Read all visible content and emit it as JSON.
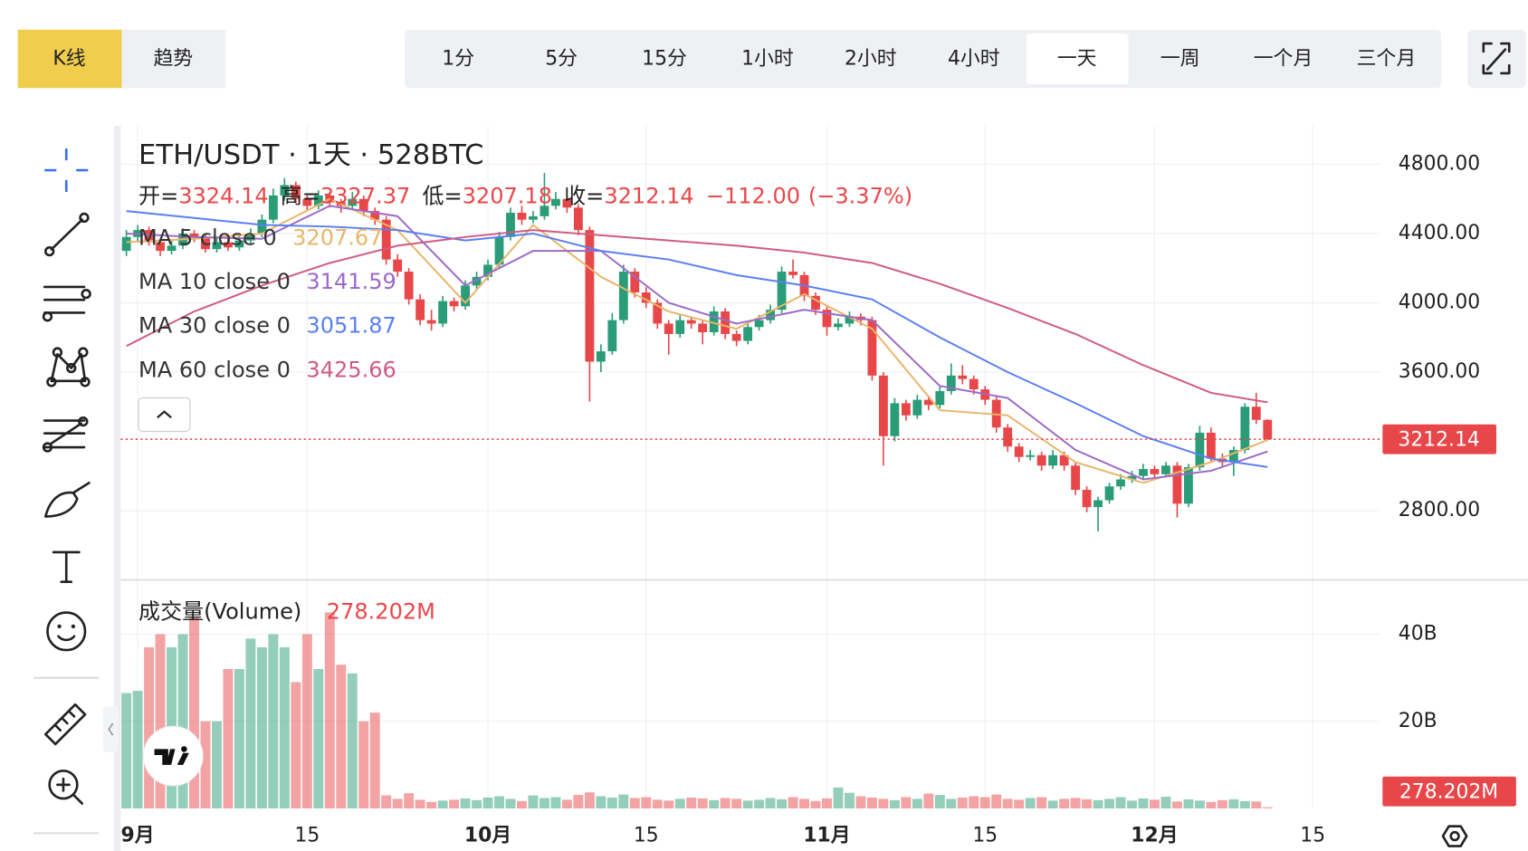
{
  "toolbar": {
    "chart_tabs": [
      "K线",
      "趋势"
    ],
    "selected_tab": 0,
    "intervals": [
      "1分",
      "5分",
      "15分",
      "1小时",
      "2小时",
      "4小时",
      "一天",
      "一周",
      "一个月",
      "三个月"
    ],
    "selected_interval": 6
  },
  "chart_data": {
    "type": "candlestick",
    "title": "ETH/USDT · 1天 · 528BTC",
    "ohlc_labels": [
      "开=",
      "高=",
      "低=",
      "收="
    ],
    "change": {
      "value": -112.0,
      "label": "−112.00"
    },
    "change_percent": {
      "value": -3.37,
      "label": "(−3.37%)"
    },
    "up_color": "#2a9d78",
    "down_color": "#e8474a",
    "grid": true,
    "xlim": [
      -0.5,
      111
    ],
    "xticks": [
      {
        "value": 1,
        "label": "9月"
      },
      {
        "value": 16,
        "label": "15"
      },
      {
        "value": 32,
        "label": "10月"
      },
      {
        "value": 46,
        "label": "15"
      },
      {
        "value": 62,
        "label": "11月"
      },
      {
        "value": 76,
        "label": "15"
      },
      {
        "value": 91,
        "label": "12月"
      },
      {
        "value": 105,
        "label": "15"
      }
    ],
    "ylim": [
      2400,
      5023
    ],
    "yticks": [
      {
        "value": 2800,
        "label": "2800.00"
      },
      {
        "value": 3600,
        "label": "3600.00"
      },
      {
        "value": 4000,
        "label": "4000.00"
      },
      {
        "value": 4400,
        "label": "4400.00"
      },
      {
        "value": 4800,
        "label": "4800.00"
      }
    ],
    "candles": [
      [
        4300,
        4420,
        4270,
        4380
      ],
      [
        4380,
        4450,
        4350,
        4420
      ],
      [
        4420,
        4440,
        4330,
        4350
      ],
      [
        4350,
        4370,
        4270,
        4300
      ],
      [
        4300,
        4360,
        4280,
        4330
      ],
      [
        4330,
        4430,
        4310,
        4400
      ],
      [
        4400,
        4420,
        4350,
        4380
      ],
      [
        4380,
        4400,
        4290,
        4310
      ],
      [
        4310,
        4380,
        4290,
        4350
      ],
      [
        4350,
        4370,
        4300,
        4320
      ],
      [
        4320,
        4390,
        4300,
        4360
      ],
      [
        4360,
        4430,
        4340,
        4400
      ],
      [
        4400,
        4510,
        4380,
        4480
      ],
      [
        4480,
        4660,
        4460,
        4620
      ],
      [
        4620,
        4720,
        4590,
        4680
      ],
      [
        4680,
        4700,
        4570,
        4600
      ],
      [
        4600,
        4620,
        4530,
        4560
      ],
      [
        4560,
        4650,
        4540,
        4620
      ],
      [
        4620,
        4640,
        4550,
        4580
      ],
      [
        4580,
        4600,
        4520,
        4560
      ],
      [
        4560,
        4640,
        4540,
        4600
      ],
      [
        4600,
        4620,
        4500,
        4530
      ],
      [
        4530,
        4550,
        4450,
        4480
      ],
      [
        4480,
        4500,
        4220,
        4250
      ],
      [
        4250,
        4280,
        4150,
        4180
      ],
      [
        4180,
        4200,
        3990,
        4020
      ],
      [
        4020,
        4050,
        3870,
        3900
      ],
      [
        3900,
        3960,
        3840,
        3880
      ],
      [
        3880,
        4040,
        3860,
        4010
      ],
      [
        4010,
        4030,
        3950,
        3980
      ],
      [
        3980,
        4130,
        3960,
        4100
      ],
      [
        4100,
        4180,
        4080,
        4150
      ],
      [
        4150,
        4250,
        4130,
        4220
      ],
      [
        4220,
        4410,
        4200,
        4380
      ],
      [
        4380,
        4550,
        4360,
        4520
      ],
      [
        4520,
        4560,
        4450,
        4480
      ],
      [
        4480,
        4530,
        4460,
        4500
      ],
      [
        4500,
        4750,
        4480,
        4560
      ],
      [
        4560,
        4640,
        4540,
        4600
      ],
      [
        4600,
        4620,
        4520,
        4550
      ],
      [
        4550,
        4570,
        4390,
        4420
      ],
      [
        4420,
        4440,
        3430,
        3660
      ],
      [
        3660,
        3760,
        3600,
        3720
      ],
      [
        3720,
        3940,
        3700,
        3900
      ],
      [
        3900,
        4220,
        3880,
        4180
      ],
      [
        4180,
        4200,
        4030,
        4060
      ],
      [
        4060,
        4090,
        3970,
        4000
      ],
      [
        4000,
        4020,
        3850,
        3880
      ],
      [
        3880,
        3900,
        3700,
        3820
      ],
      [
        3820,
        3930,
        3800,
        3900
      ],
      [
        3900,
        3920,
        3850,
        3880
      ],
      [
        3880,
        3900,
        3760,
        3830
      ],
      [
        3830,
        3980,
        3810,
        3950
      ],
      [
        3950,
        3970,
        3790,
        3820
      ],
      [
        3820,
        3840,
        3750,
        3780
      ],
      [
        3780,
        3890,
        3760,
        3860
      ],
      [
        3860,
        3930,
        3840,
        3900
      ],
      [
        3900,
        3990,
        3880,
        3960
      ],
      [
        3960,
        4210,
        3940,
        4180
      ],
      [
        4180,
        4250,
        4140,
        4160
      ],
      [
        4160,
        4180,
        4010,
        4040
      ],
      [
        4040,
        4060,
        3930,
        3960
      ],
      [
        3960,
        3980,
        3810,
        3860
      ],
      [
        3860,
        3910,
        3840,
        3880
      ],
      [
        3880,
        3950,
        3860,
        3920
      ],
      [
        3920,
        3940,
        3870,
        3900
      ],
      [
        3900,
        3920,
        3550,
        3580
      ],
      [
        3580,
        3600,
        3060,
        3230
      ],
      [
        3230,
        3450,
        3200,
        3420
      ],
      [
        3420,
        3440,
        3320,
        3350
      ],
      [
        3350,
        3470,
        3330,
        3440
      ],
      [
        3440,
        3460,
        3380,
        3410
      ],
      [
        3410,
        3520,
        3390,
        3490
      ],
      [
        3490,
        3650,
        3470,
        3580
      ],
      [
        3580,
        3640,
        3530,
        3560
      ],
      [
        3560,
        3580,
        3470,
        3500
      ],
      [
        3500,
        3520,
        3410,
        3440
      ],
      [
        3440,
        3460,
        3250,
        3280
      ],
      [
        3280,
        3300,
        3140,
        3170
      ],
      [
        3170,
        3190,
        3080,
        3110
      ],
      [
        3110,
        3150,
        3090,
        3120
      ],
      [
        3120,
        3140,
        3030,
        3060
      ],
      [
        3060,
        3150,
        3040,
        3120
      ],
      [
        3120,
        3140,
        3030,
        3060
      ],
      [
        3060,
        3080,
        2890,
        2920
      ],
      [
        2920,
        2940,
        2790,
        2820
      ],
      [
        2820,
        2880,
        2680,
        2860
      ],
      [
        2860,
        2960,
        2840,
        2940
      ],
      [
        2940,
        3010,
        2920,
        2980
      ],
      [
        2980,
        3030,
        2960,
        3000
      ],
      [
        3000,
        3070,
        2980,
        3040
      ],
      [
        3040,
        3060,
        2990,
        3010
      ],
      [
        3010,
        3080,
        2990,
        3060
      ],
      [
        3060,
        3080,
        2760,
        2840
      ],
      [
        2840,
        3070,
        2820,
        3050
      ],
      [
        3050,
        3290,
        3030,
        3250
      ],
      [
        3250,
        3280,
        3080,
        3100
      ],
      [
        3100,
        3130,
        3050,
        3080
      ],
      [
        3080,
        3170,
        3000,
        3150
      ],
      [
        3150,
        3420,
        3130,
        3400
      ],
      [
        3400,
        3480,
        3300,
        3324.14
      ],
      [
        3324.14,
        3327.37,
        3207.18,
        3212.14
      ]
    ],
    "ma": [
      {
        "name": "MA 5 close 0",
        "color": "#e8b56a",
        "x": [
          0,
          6,
          12,
          18,
          24,
          30,
          36,
          42,
          48,
          54,
          60,
          66,
          72,
          78,
          84,
          90,
          96,
          101
        ],
        "values": [
          4350,
          4370,
          4400,
          4600,
          4420,
          4000,
          4450,
          4150,
          3950,
          3850,
          4050,
          3850,
          3380,
          3350,
          3080,
          2960,
          3080,
          3207.67
        ]
      },
      {
        "name": "MA 10 close 0",
        "color": "#9c6ac7",
        "x": [
          0,
          6,
          12,
          18,
          24,
          30,
          36,
          42,
          48,
          54,
          60,
          66,
          72,
          78,
          84,
          90,
          96,
          101
        ],
        "values": [
          4400,
          4380,
          4370,
          4560,
          4500,
          4100,
          4300,
          4300,
          4000,
          3880,
          3960,
          3900,
          3520,
          3450,
          3150,
          2980,
          3030,
          3141.59
        ]
      },
      {
        "name": "MA 30 close 0",
        "color": "#5b7ef5",
        "x": [
          0,
          6,
          12,
          18,
          24,
          30,
          36,
          42,
          48,
          54,
          60,
          66,
          72,
          78,
          84,
          90,
          96,
          101
        ],
        "values": [
          4530,
          4490,
          4450,
          4440,
          4420,
          4360,
          4400,
          4300,
          4250,
          4160,
          4100,
          4020,
          3800,
          3600,
          3420,
          3230,
          3100,
          3051.87
        ]
      },
      {
        "name": "MA 60 close 0",
        "color": "#cf5a86",
        "x": [
          0,
          6,
          12,
          18,
          24,
          30,
          36,
          42,
          48,
          54,
          60,
          66,
          72,
          78,
          84,
          90,
          96,
          101
        ],
        "values": [
          3750,
          3950,
          4100,
          4230,
          4330,
          4380,
          4420,
          4390,
          4360,
          4330,
          4290,
          4230,
          4110,
          3970,
          3820,
          3640,
          3480,
          3425.66
        ]
      }
    ],
    "volume": {
      "title": "成交量(Volume)",
      "current_label": "278.202M",
      "ylim": [
        0,
        47.7
      ],
      "yticks": [
        {
          "value": 20,
          "label": "20B"
        },
        {
          "value": 40,
          "label": "40B"
        }
      ],
      "values": [
        26.5,
        27,
        37,
        40,
        37,
        40,
        44,
        20,
        20,
        32,
        32,
        39,
        37,
        40,
        37,
        29,
        40,
        32,
        45,
        33,
        31,
        20,
        22,
        3,
        2.2,
        3.5,
        2,
        1.5,
        1.8,
        2,
        2.3,
        1.9,
        2.5,
        2.8,
        2.2,
        1.7,
        3,
        2.4,
        2.6,
        2,
        3.1,
        3.7,
        2.8,
        2.5,
        3.2,
        2.4,
        2.6,
        2,
        1.8,
        2.2,
        2.5,
        2.3,
        1.9,
        2.4,
        2.2,
        1.8,
        2,
        2.4,
        2.1,
        2.6,
        2.2,
        1.7,
        2.3,
        4.8,
        3.6,
        2.8,
        2.5,
        2.2,
        1.9,
        2.6,
        2.2,
        3.4,
        3.1,
        2.2,
        2.5,
        2.8,
        2.6,
        3.2,
        2.2,
        2,
        2.4,
        2.6,
        1.8,
        2.2,
        2.4,
        2.1,
        1.9,
        2.2,
        2.6,
        1.8,
        2.3,
        2,
        2.7,
        1.6,
        2.1,
        1.8,
        1.5,
        1.9,
        2.1,
        1.7,
        1.6,
        0.278202
      ]
    }
  }
}
